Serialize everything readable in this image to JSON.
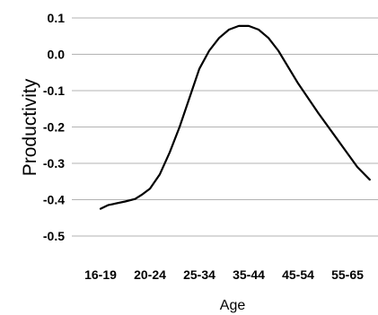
{
  "chart_data": {
    "type": "line",
    "title": "",
    "xlabel": "Age",
    "ylabel": "Productivity",
    "categories": [
      "16-19",
      "20-24",
      "25-34",
      "35-44",
      "45-54",
      "55-65"
    ],
    "ylim": [
      -0.5,
      0.1
    ],
    "yticks": [
      0.1,
      0.0,
      -0.1,
      -0.2,
      -0.3,
      -0.4,
      -0.5
    ],
    "ytick_labels": [
      "0.1",
      "0.0",
      "-0.1",
      "-0.2",
      "-0.3",
      "-0.4",
      "-0.5"
    ],
    "grid": true,
    "legend": "none",
    "series": [
      {
        "color": "#000000",
        "points": [
          {
            "x": 0.0,
            "y": -0.425
          },
          {
            "x": 0.15,
            "y": -0.415
          },
          {
            "x": 0.5,
            "y": -0.405
          },
          {
            "x": 0.7,
            "y": -0.398
          },
          {
            "x": 0.85,
            "y": -0.385
          },
          {
            "x": 1.0,
            "y": -0.37
          },
          {
            "x": 1.2,
            "y": -0.33
          },
          {
            "x": 1.4,
            "y": -0.27
          },
          {
            "x": 1.6,
            "y": -0.2
          },
          {
            "x": 1.8,
            "y": -0.12
          },
          {
            "x": 2.0,
            "y": -0.04
          },
          {
            "x": 2.2,
            "y": 0.01
          },
          {
            "x": 2.4,
            "y": 0.045
          },
          {
            "x": 2.6,
            "y": 0.068
          },
          {
            "x": 2.8,
            "y": 0.078
          },
          {
            "x": 3.0,
            "y": 0.078
          },
          {
            "x": 3.2,
            "y": 0.068
          },
          {
            "x": 3.4,
            "y": 0.045
          },
          {
            "x": 3.6,
            "y": 0.01
          },
          {
            "x": 4.0,
            "y": -0.08
          },
          {
            "x": 4.4,
            "y": -0.16
          },
          {
            "x": 4.8,
            "y": -0.235
          },
          {
            "x": 5.2,
            "y": -0.31
          },
          {
            "x": 5.45,
            "y": -0.345
          }
        ]
      }
    ]
  }
}
